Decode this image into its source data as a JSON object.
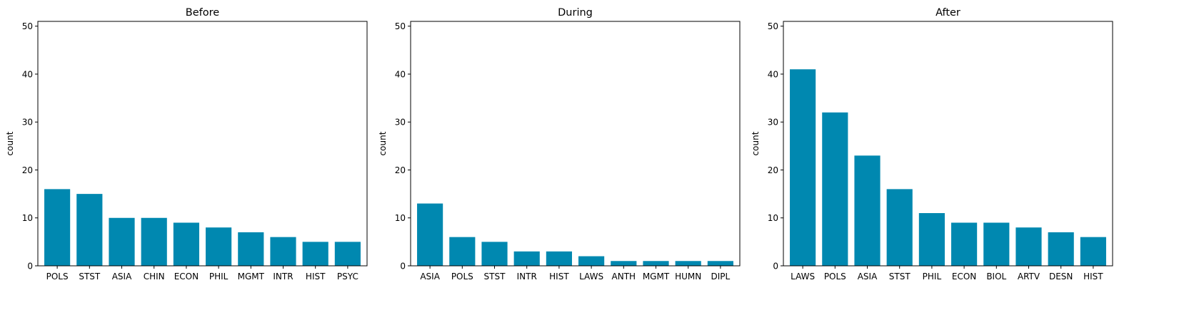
{
  "colors": {
    "bar": "#0088b0",
    "axis": "#000000",
    "background": "#ffffff"
  },
  "chart_data": [
    {
      "type": "bar",
      "title": "Before",
      "xlabel": "",
      "ylabel": "count",
      "ylim": [
        0,
        51
      ],
      "yticks": [
        0,
        10,
        20,
        30,
        40,
        50
      ],
      "categories": [
        "POLS",
        "STST",
        "ASIA",
        "CHIN",
        "ECON",
        "PHIL",
        "MGMT",
        "INTR",
        "HIST",
        "PSYC"
      ],
      "values": [
        16,
        15,
        10,
        10,
        9,
        8,
        7,
        6,
        5,
        5
      ],
      "grid": false
    },
    {
      "type": "bar",
      "title": "During",
      "xlabel": "",
      "ylabel": "count",
      "ylim": [
        0,
        51
      ],
      "yticks": [
        0,
        10,
        20,
        30,
        40,
        50
      ],
      "categories": [
        "ASIA",
        "POLS",
        "STST",
        "INTR",
        "HIST",
        "LAWS",
        "ANTH",
        "MGMT",
        "HUMN",
        "DIPL"
      ],
      "values": [
        13,
        6,
        5,
        3,
        3,
        2,
        1,
        1,
        1,
        1
      ],
      "grid": false
    },
    {
      "type": "bar",
      "title": "After",
      "xlabel": "",
      "ylabel": "count",
      "ylim": [
        0,
        51
      ],
      "yticks": [
        0,
        10,
        20,
        30,
        40,
        50
      ],
      "categories": [
        "LAWS",
        "POLS",
        "ASIA",
        "STST",
        "PHIL",
        "ECON",
        "BIOL",
        "ARTV",
        "DESN",
        "HIST"
      ],
      "values": [
        41,
        32,
        23,
        16,
        11,
        9,
        9,
        8,
        7,
        6
      ],
      "grid": false
    }
  ]
}
